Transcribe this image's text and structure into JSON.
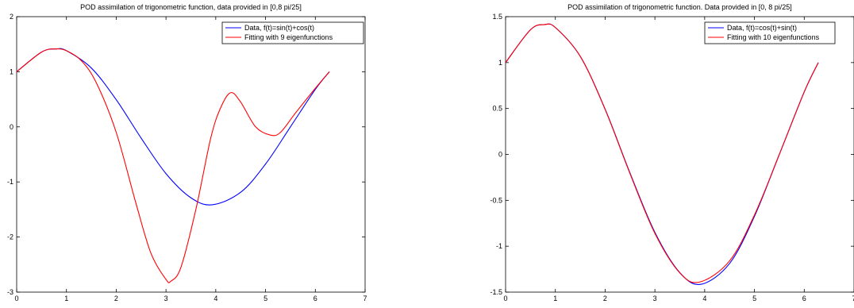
{
  "chart_data": [
    {
      "type": "line",
      "title": "POD assimilation of trigonometric function, data provided in [0,8 pi/25]",
      "xlim": [
        0,
        7
      ],
      "ylim": [
        -3,
        2
      ],
      "xticks": [
        "0",
        "1",
        "2",
        "3",
        "4",
        "5",
        "6",
        "7"
      ],
      "yticks": [
        "-3",
        "-2",
        "-1",
        "0",
        "1",
        "2"
      ],
      "legend_position": "top-right",
      "series": [
        {
          "name": "Data, f(t)=sin(t)+cos(t)",
          "color": "#0000ff",
          "x": [
            0,
            0.5,
            0.785,
            1.0,
            1.5,
            2.0,
            2.5,
            3.0,
            3.5,
            3.93,
            4.5,
            5.0,
            5.5,
            6.0,
            6.283
          ],
          "y": [
            1.0,
            1.357,
            1.414,
            1.382,
            1.068,
            0.493,
            -0.203,
            -0.849,
            -1.287,
            -1.414,
            -1.188,
            -0.675,
            0.0,
            0.681,
            1.0
          ]
        },
        {
          "name": "Fitting with 9 eigenfunctions",
          "color": "#ff0000",
          "x": [
            0,
            0.5,
            0.785,
            1.0,
            1.3,
            1.6,
            2.0,
            2.4,
            2.7,
            3.0,
            3.1,
            3.3,
            3.6,
            3.9,
            4.1,
            4.3,
            4.5,
            4.8,
            5.1,
            5.3,
            5.6,
            6.0,
            6.283
          ],
          "y": [
            1.0,
            1.357,
            1.414,
            1.382,
            1.2,
            0.8,
            -0.1,
            -1.4,
            -2.3,
            -2.77,
            -2.8,
            -2.55,
            -1.5,
            -0.2,
            0.35,
            0.62,
            0.45,
            0.0,
            -0.15,
            -0.1,
            0.25,
            0.7,
            1.0
          ]
        }
      ]
    },
    {
      "type": "line",
      "title": "POD assimilation of trigonometric function. Data provided in [0,  8 pi/25]",
      "xlim": [
        0,
        7
      ],
      "ylim": [
        -1.5,
        1.5
      ],
      "xticks": [
        "0",
        "1",
        "2",
        "3",
        "4",
        "5",
        "6",
        "7"
      ],
      "yticks": [
        "-1.5",
        "-1",
        "-0.5",
        "0",
        "0.5",
        "1",
        "1.5"
      ],
      "legend_position": "top-right",
      "series": [
        {
          "name": "Data, f(t)=cos(t)+sin(t)",
          "color": "#0000ff",
          "x": [
            0,
            0.5,
            0.785,
            1.0,
            1.5,
            2.0,
            2.5,
            3.0,
            3.5,
            3.93,
            4.5,
            5.0,
            5.5,
            6.0,
            6.283
          ],
          "y": [
            1.0,
            1.357,
            1.414,
            1.382,
            1.068,
            0.493,
            -0.203,
            -0.849,
            -1.287,
            -1.414,
            -1.188,
            -0.675,
            0.0,
            0.681,
            1.0
          ]
        },
        {
          "name": "Fitting with 10 eigenfunctions",
          "color": "#ff0000",
          "x": [
            0,
            0.5,
            0.785,
            1.0,
            1.5,
            2.0,
            2.5,
            3.0,
            3.5,
            3.9,
            4.5,
            5.0,
            5.5,
            6.0,
            6.283
          ],
          "y": [
            1.0,
            1.357,
            1.414,
            1.382,
            1.068,
            0.49,
            -0.21,
            -0.86,
            -1.29,
            -1.39,
            -1.16,
            -0.66,
            0.0,
            0.68,
            1.0
          ]
        }
      ]
    }
  ]
}
